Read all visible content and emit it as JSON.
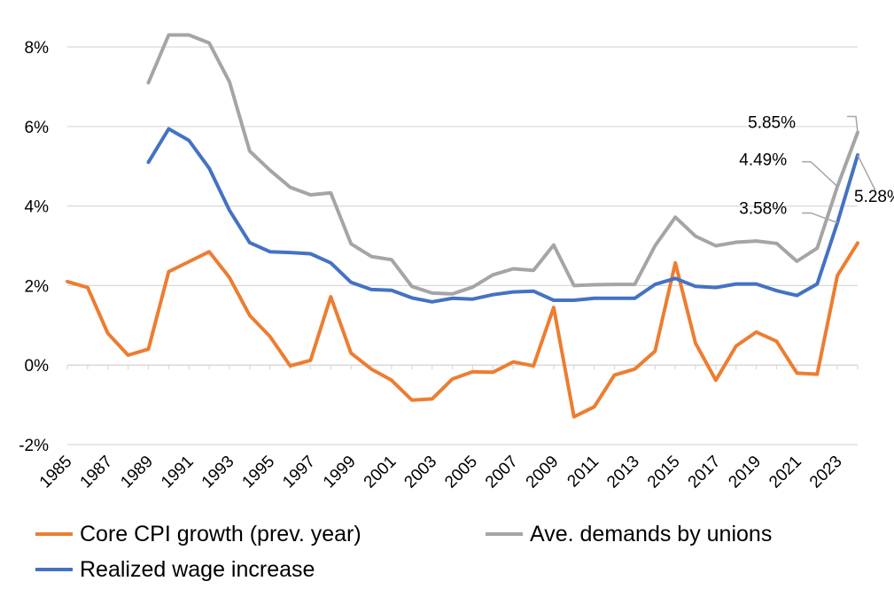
{
  "chart_data": {
    "type": "line",
    "title": "",
    "xlabel": "",
    "ylabel": "",
    "ylim": [
      -2,
      8
    ],
    "yticks": [
      "-2%",
      "0%",
      "2%",
      "4%",
      "6%",
      "8%"
    ],
    "ytick_values": [
      -2,
      0,
      2,
      4,
      6,
      8
    ],
    "x": [
      1985,
      1986,
      1987,
      1988,
      1989,
      1990,
      1991,
      1992,
      1993,
      1994,
      1995,
      1996,
      1997,
      1998,
      1999,
      2000,
      2001,
      2002,
      2003,
      2004,
      2005,
      2006,
      2007,
      2008,
      2009,
      2010,
      2011,
      2012,
      2013,
      2014,
      2015,
      2016,
      2017,
      2018,
      2019,
      2020,
      2021,
      2022,
      2023,
      2024
    ],
    "xtick_labels": [
      "1985",
      "1987",
      "1989",
      "1991",
      "1993",
      "1995",
      "1997",
      "1999",
      "2001",
      "2003",
      "2005",
      "2007",
      "2009",
      "2011",
      "2013",
      "2015",
      "2017",
      "2019",
      "2021",
      "2023"
    ],
    "grid": true,
    "legend_position": "bottom",
    "series": [
      {
        "name": "Core CPI growth (prev. year)",
        "color": "#ED7D31",
        "values": [
          2.1,
          1.95,
          0.8,
          0.25,
          0.4,
          2.35,
          2.6,
          2.85,
          2.2,
          1.25,
          0.72,
          -0.02,
          0.12,
          1.72,
          0.3,
          -0.1,
          -0.38,
          -0.88,
          -0.85,
          -0.35,
          -0.17,
          -0.18,
          0.08,
          -0.02,
          1.45,
          -1.3,
          -1.05,
          -0.25,
          -0.1,
          0.35,
          2.57,
          0.55,
          -0.38,
          0.48,
          0.83,
          0.6,
          -0.2,
          -0.23,
          2.25,
          3.07
        ]
      },
      {
        "name": "Ave. demands by unions",
        "color": "#A5A5A5",
        "values": [
          null,
          null,
          null,
          null,
          7.1,
          8.3,
          8.3,
          8.1,
          7.12,
          5.38,
          4.9,
          4.47,
          4.28,
          4.33,
          3.05,
          2.73,
          2.65,
          1.98,
          1.81,
          1.79,
          1.96,
          2.27,
          2.42,
          2.38,
          3.02,
          2.0,
          2.02,
          2.03,
          2.03,
          3.0,
          3.72,
          3.24,
          3.0,
          3.09,
          3.12,
          3.06,
          2.61,
          2.94,
          4.49,
          5.85
        ]
      },
      {
        "name": "Realized wage increase",
        "color": "#4472C4",
        "values": [
          null,
          null,
          null,
          null,
          5.1,
          5.94,
          5.65,
          4.95,
          3.89,
          3.08,
          2.85,
          2.83,
          2.8,
          2.57,
          2.08,
          1.9,
          1.88,
          1.69,
          1.59,
          1.68,
          1.66,
          1.77,
          1.84,
          1.86,
          1.63,
          1.63,
          1.68,
          1.68,
          1.68,
          2.03,
          2.18,
          1.98,
          1.95,
          2.04,
          2.04,
          1.87,
          1.75,
          2.04,
          3.58,
          5.28
        ]
      }
    ],
    "annotations": [
      {
        "text": "5.85%",
        "series": 1,
        "x": 2024
      },
      {
        "text": "4.49%",
        "series": 1,
        "x": 2023
      },
      {
        "text": "3.58%",
        "series": 2,
        "x": 2023
      },
      {
        "text": "5.28%",
        "series": 2,
        "x": 2024
      }
    ]
  },
  "legend": {
    "items": [
      {
        "label": "Core CPI growth (prev. year)",
        "color": "#ED7D31"
      },
      {
        "label": "Ave. demands by unions",
        "color": "#A5A5A5"
      },
      {
        "label": "Realized wage increase",
        "color": "#4472C4"
      }
    ]
  }
}
